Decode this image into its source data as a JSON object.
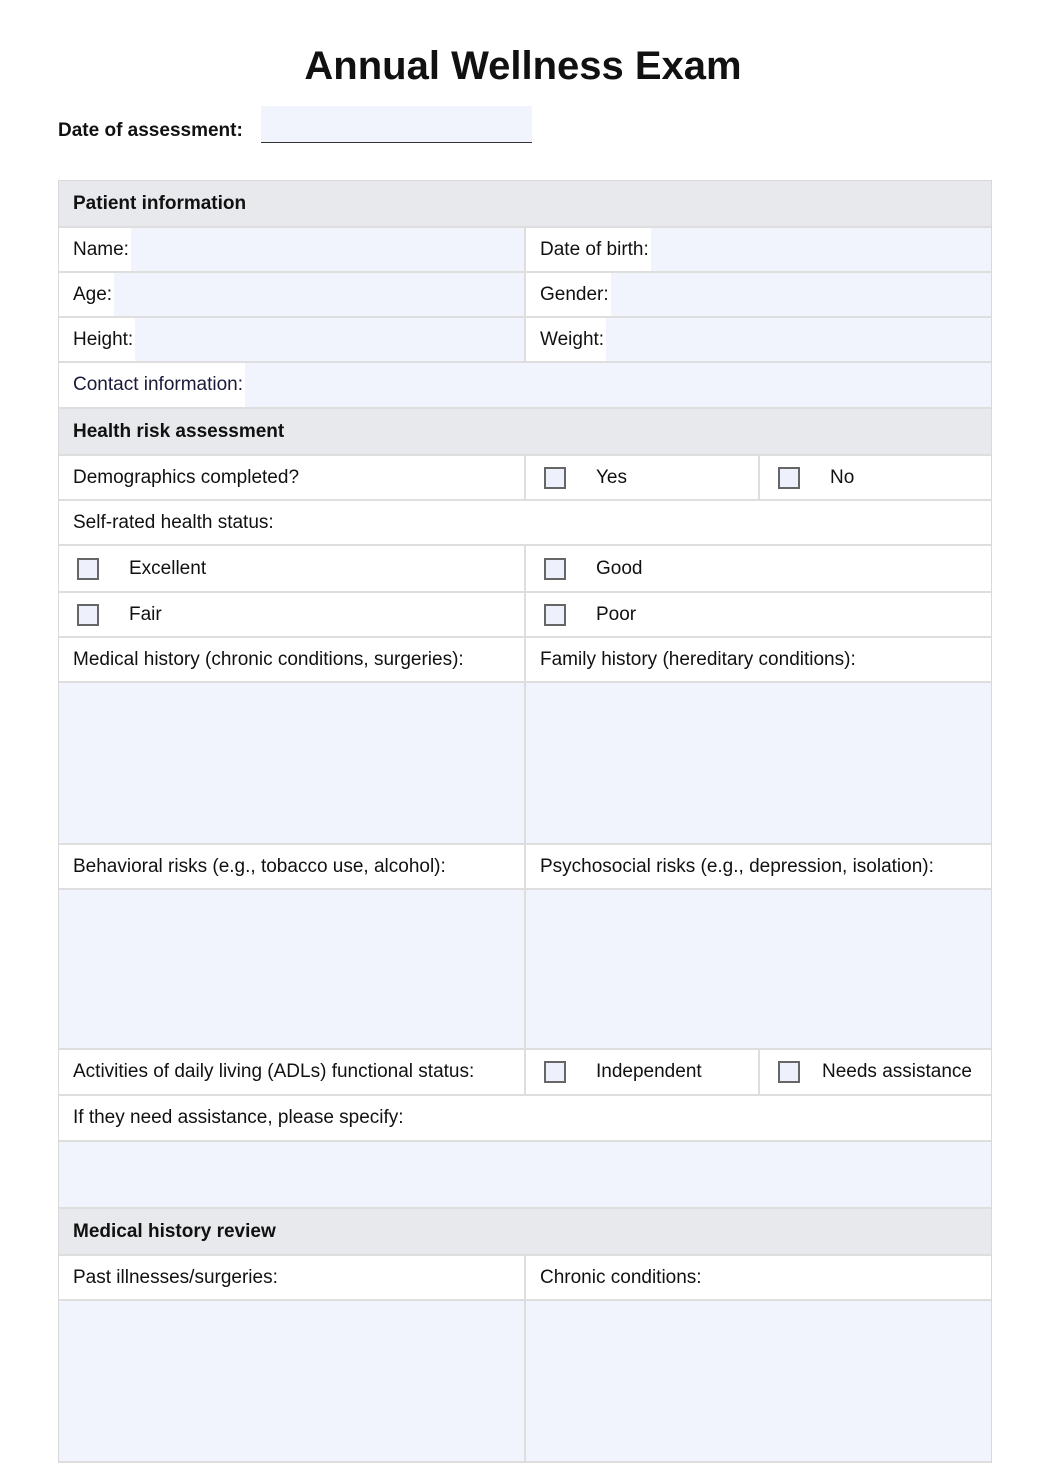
{
  "title": "Annual Wellness Exam",
  "date_of_assessment": {
    "label": "Date of assessment:",
    "value": ""
  },
  "sections": {
    "patient": {
      "title": "Patient information",
      "name": "Name:",
      "dob": "Date of birth:",
      "age": "Age:",
      "gender": "Gender:",
      "height": "Height:",
      "weight": "Weight:",
      "contact": "Contact information:"
    },
    "risk": {
      "title": "Health risk assessment",
      "demographics": "Demographics completed?",
      "yes": "Yes",
      "no": "No",
      "self_rated": "Self-rated health status:",
      "excellent": "Excellent",
      "good": "Good",
      "fair": "Fair",
      "poor": "Poor",
      "medical_history": "Medical history (chronic conditions, surgeries):",
      "family_history": "Family history (hereditary conditions):",
      "behavioral": "Behavioral risks (e.g., tobacco use, alcohol):",
      "psychosocial": "Psychosocial risks (e.g., depression, isolation):",
      "adl": "Activities of daily living (ADLs) functional status:",
      "independent": "Independent",
      "needs_assistance": "Needs assistance",
      "specify": "If they need assistance, please specify:"
    },
    "review": {
      "title": "Medical history review",
      "past": "Past illnesses/surgeries:",
      "chronic": "Chronic conditions:"
    }
  },
  "colors": {
    "field_bg": "#f1f4fd",
    "header_bg": "#e8e9ec"
  }
}
